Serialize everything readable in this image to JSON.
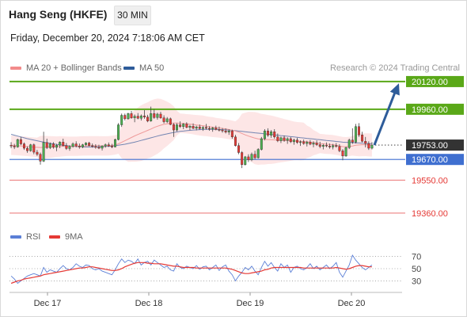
{
  "header": {
    "title": "Hang Seng (HKFE)",
    "interval": "30 MIN",
    "datetime": "Friday, December 20, 2024 7:18:06 AM CET"
  },
  "legend": {
    "ma20_label": "MA 20 + Bollinger Bands",
    "ma50_label": "MA 50",
    "credit": "Research © 2024 Trading Central",
    "rsi_label": "RSI",
    "ma9_label": "9MA"
  },
  "colors": {
    "up_candle": "#4caf50",
    "down_candle": "#e53935",
    "ma20": "#ef9a9a",
    "bollinger_fill": "#fde2e2",
    "ma50": "#5b73a8",
    "resistance": "#5aa818",
    "support_blue": "#3f6fd0",
    "support_red": "#ef8e8e",
    "current_price_bg": "#333333",
    "arrow": "#2e5c9a",
    "rsi_line": "#5b7fd6",
    "rsi_ma9": "#e53935"
  },
  "chart_data": [
    {
      "type": "candlestick",
      "ylim": [
        19300,
        20170
      ],
      "x_labels": [
        "Dec 17",
        "Dec 18",
        "Dec 19",
        "Dec 20"
      ],
      "levels": [
        {
          "value": 20120.0,
          "label": "20120.00",
          "kind": "resistance"
        },
        {
          "value": 19960.0,
          "label": "19960.00",
          "kind": "resistance"
        },
        {
          "value": 19753.0,
          "label": "19753.00",
          "kind": "current"
        },
        {
          "value": 19670.0,
          "label": "19670.00",
          "kind": "pivot"
        },
        {
          "value": 19550.0,
          "label": "19550.00",
          "kind": "support"
        },
        {
          "value": 19360.0,
          "label": "19360.00",
          "kind": "support"
        }
      ],
      "arrow": {
        "from": 19753,
        "to": 20110
      },
      "candles": [
        [
          19752,
          19770,
          19735,
          19748
        ],
        [
          19748,
          19760,
          19730,
          19742
        ],
        [
          19742,
          19790,
          19738,
          19785
        ],
        [
          19785,
          19800,
          19752,
          19760
        ],
        [
          19760,
          19768,
          19725,
          19735
        ],
        [
          19735,
          19745,
          19708,
          19720
        ],
        [
          19720,
          19760,
          19715,
          19755
        ],
        [
          19755,
          19762,
          19700,
          19712
        ],
        [
          19712,
          19725,
          19690,
          19700
        ],
        [
          19700,
          19710,
          19640,
          19660
        ],
        [
          19660,
          19830,
          19655,
          19768
        ],
        [
          19768,
          19790,
          19730,
          19738
        ],
        [
          19738,
          19768,
          19730,
          19760
        ],
        [
          19760,
          19770,
          19732,
          19740
        ],
        [
          19740,
          19760,
          19718,
          19752
        ],
        [
          19752,
          19775,
          19735,
          19770
        ],
        [
          19770,
          19790,
          19745,
          19750
        ],
        [
          19750,
          19765,
          19725,
          19733
        ],
        [
          19733,
          19752,
          19720,
          19745
        ],
        [
          19745,
          19768,
          19738,
          19760
        ],
        [
          19760,
          19775,
          19740,
          19748
        ],
        [
          19748,
          19762,
          19732,
          19742
        ],
        [
          19742,
          19760,
          19735,
          19755
        ],
        [
          19755,
          19770,
          19748,
          19765
        ],
        [
          19765,
          19772,
          19745,
          19750
        ],
        [
          19750,
          19762,
          19738,
          19745
        ],
        [
          19745,
          19758,
          19732,
          19740
        ],
        [
          19740,
          19755,
          19730,
          19735
        ],
        [
          19735,
          19752,
          19722,
          19748
        ],
        [
          19748,
          19762,
          19738,
          19755
        ],
        [
          19755,
          19768,
          19742,
          19748
        ],
        [
          19748,
          19760,
          19735,
          19742
        ],
        [
          19742,
          19790,
          19740,
          19785
        ],
        [
          19785,
          19880,
          19780,
          19870
        ],
        [
          19870,
          19935,
          19858,
          19925
        ],
        [
          19925,
          19935,
          19895,
          19905
        ],
        [
          19905,
          19940,
          19900,
          19935
        ],
        [
          19935,
          19950,
          19905,
          19910
        ],
        [
          19910,
          19930,
          19885,
          19920
        ],
        [
          19920,
          19938,
          19902,
          19908
        ],
        [
          19908,
          19930,
          19895,
          19922
        ],
        [
          19922,
          19955,
          19905,
          19915
        ],
        [
          19915,
          19928,
          19885,
          19892
        ],
        [
          19892,
          19975,
          19888,
          19935
        ],
        [
          19935,
          19960,
          19905,
          19912
        ],
        [
          19912,
          19940,
          19900,
          19932
        ],
        [
          19932,
          19945,
          19905,
          19910
        ],
        [
          19910,
          19925,
          19878,
          19888
        ],
        [
          19888,
          19915,
          19880,
          19905
        ],
        [
          19905,
          19912,
          19868,
          19872
        ],
        [
          19872,
          19880,
          19800,
          19840
        ],
        [
          19840,
          19880,
          19832,
          19870
        ],
        [
          19870,
          19890,
          19852,
          19860
        ],
        [
          19860,
          19880,
          19845,
          19875
        ],
        [
          19875,
          19885,
          19850,
          19855
        ],
        [
          19855,
          19870,
          19840,
          19862
        ],
        [
          19862,
          19878,
          19845,
          19850
        ],
        [
          19850,
          19865,
          19838,
          19858
        ],
        [
          19858,
          19872,
          19842,
          19848
        ],
        [
          19848,
          19862,
          19835,
          19855
        ],
        [
          19855,
          19875,
          19842,
          19850
        ],
        [
          19850,
          19862,
          19836,
          19845
        ],
        [
          19845,
          19858,
          19830,
          19852
        ],
        [
          19852,
          19865,
          19838,
          19843
        ],
        [
          19843,
          19860,
          19832,
          19840
        ],
        [
          19840,
          19852,
          19825,
          19835
        ],
        [
          19835,
          19850,
          19820,
          19828
        ],
        [
          19828,
          19845,
          19812,
          19835
        ],
        [
          19835,
          19842,
          19790,
          19800
        ],
        [
          19800,
          19812,
          19745,
          19750
        ],
        [
          19750,
          19765,
          19700,
          19710
        ],
        [
          19710,
          19718,
          19620,
          19640
        ],
        [
          19640,
          19690,
          19635,
          19685
        ],
        [
          19685,
          19700,
          19655,
          19668
        ],
        [
          19668,
          19710,
          19660,
          19700
        ],
        [
          19700,
          19720,
          19670,
          19680
        ],
        [
          19680,
          19735,
          19675,
          19728
        ],
        [
          19728,
          19800,
          19722,
          19790
        ],
        [
          19790,
          19845,
          19780,
          19835
        ],
        [
          19835,
          19850,
          19800,
          19810
        ],
        [
          19810,
          19840,
          19795,
          19830
        ],
        [
          19830,
          19845,
          19790,
          19800
        ],
        [
          19800,
          19820,
          19770,
          19778
        ],
        [
          19778,
          19802,
          19765,
          19795
        ],
        [
          19795,
          19808,
          19772,
          19780
        ],
        [
          19780,
          19798,
          19760,
          19790
        ],
        [
          19790,
          19800,
          19765,
          19772
        ],
        [
          19772,
          19790,
          19755,
          19782
        ],
        [
          19782,
          19795,
          19760,
          19768
        ],
        [
          19768,
          19780,
          19748,
          19772
        ],
        [
          19772,
          19785,
          19755,
          19762
        ],
        [
          19762,
          19778,
          19745,
          19770
        ],
        [
          19770,
          19782,
          19752,
          19758
        ],
        [
          19758,
          19775,
          19740,
          19765
        ],
        [
          19765,
          19780,
          19748,
          19755
        ],
        [
          19755,
          19772,
          19735,
          19745
        ],
        [
          19745,
          19760,
          19728,
          19752
        ],
        [
          19752,
          19768,
          19740,
          19748
        ],
        [
          19748,
          19762,
          19732,
          19742
        ],
        [
          19742,
          19760,
          19728,
          19750
        ],
        [
          19750,
          19765,
          19738,
          19745
        ],
        [
          19745,
          19758,
          19712,
          19720
        ],
        [
          19720,
          19730,
          19665,
          19690
        ],
        [
          19690,
          19745,
          19685,
          19738
        ],
        [
          19738,
          19790,
          19730,
          19782
        ],
        [
          19782,
          19850,
          19760,
          19770
        ],
        [
          19770,
          19875,
          19762,
          19860
        ],
        [
          19860,
          19880,
          19800,
          19812
        ],
        [
          19812,
          19830,
          19768,
          19775
        ],
        [
          19775,
          19800,
          19740,
          19762
        ],
        [
          19762,
          19775,
          19725,
          19735
        ],
        [
          19735,
          19770,
          19728,
          19753
        ]
      ],
      "ma20": [
        19752,
        19751,
        19750,
        19748,
        19747,
        19745,
        19743,
        19741,
        19740,
        19739,
        19740,
        19741,
        19742,
        19743,
        19744,
        19745,
        19746,
        19746,
        19746,
        19746,
        19746,
        19747,
        19748,
        19748,
        19749,
        19749,
        19749,
        19749,
        19748,
        19748,
        19749,
        19751,
        19754,
        19760,
        19769,
        19778,
        19787,
        19797,
        19806,
        19814,
        19822,
        19830,
        19838,
        19846,
        19855,
        19862,
        19868,
        19873,
        19876,
        19879,
        19880,
        19880,
        19879,
        19878,
        19876,
        19874,
        19872,
        19869,
        19867,
        19865,
        19862,
        19859,
        19857,
        19854,
        19852,
        19849,
        19846,
        19843,
        19839,
        19834,
        19828,
        19820,
        19812,
        19805,
        19799,
        19793,
        19789,
        19787,
        19786,
        19785,
        19784,
        19783,
        19782,
        19781,
        19780,
        19779,
        19778,
        19777,
        19776,
        19775,
        19774,
        19772,
        19770,
        19767,
        19765,
        19762,
        19760,
        19758,
        19757,
        19755,
        19752,
        19748,
        19744,
        19743,
        19745,
        19748,
        19752,
        19754,
        19755,
        19755,
        19754,
        19753
      ],
      "ma50": [
        19815,
        19810,
        19805,
        19800,
        19795,
        19790,
        19786,
        19782,
        19778,
        19774,
        19770,
        19766,
        19763,
        19760,
        19757,
        19755,
        19752,
        19750,
        19748,
        19746,
        19745,
        19744,
        19743,
        19742,
        19742,
        19742,
        19742,
        19743,
        19744,
        19745,
        19746,
        19748,
        19750,
        19752,
        19755,
        19758,
        19762,
        19766,
        19770,
        19775,
        19780,
        19785,
        19790,
        19795,
        19800,
        19805,
        19810,
        19814,
        19818,
        19822,
        19826,
        19829,
        19832,
        19834,
        19836,
        19838,
        19840,
        19841,
        19842,
        19843,
        19844,
        19844,
        19844,
        19844,
        19843,
        19842,
        19841,
        19840,
        19838,
        19836,
        19834,
        19832,
        19830,
        19828,
        19826,
        19824,
        19822,
        19820,
        19818,
        19816,
        19814,
        19812,
        19810,
        19808,
        19806,
        19804,
        19802,
        19800,
        19798,
        19796,
        19794,
        19792,
        19790,
        19788,
        19786,
        19784,
        19782,
        19780,
        19778,
        19776,
        19774,
        19772,
        19770,
        19769,
        19768,
        19767,
        19766,
        19765,
        19764,
        19763,
        19762,
        19761
      ]
    },
    {
      "type": "line",
      "name": "RSI",
      "ylim": [
        15,
        85
      ],
      "y_ticks": [
        70,
        50,
        30
      ],
      "rsi": [
        38,
        33,
        26,
        30,
        34,
        38,
        40,
        42,
        40,
        38,
        52,
        44,
        48,
        46,
        44,
        50,
        55,
        50,
        48,
        52,
        58,
        54,
        52,
        56,
        55,
        50,
        48,
        50,
        46,
        44,
        42,
        40,
        48,
        58,
        66,
        60,
        64,
        62,
        58,
        66,
        56,
        60,
        62,
        56,
        64,
        60,
        56,
        52,
        54,
        48,
        46,
        58,
        52,
        50,
        54,
        52,
        50,
        55,
        49,
        53,
        54,
        48,
        52,
        56,
        47,
        53,
        56,
        46,
        40,
        30,
        38,
        44,
        52,
        48,
        54,
        46,
        40,
        52,
        62,
        54,
        60,
        52,
        46,
        58,
        52,
        56,
        44,
        52,
        54,
        50,
        48,
        52,
        58,
        50,
        54,
        48,
        52,
        56,
        50,
        54,
        60,
        44,
        36,
        46,
        56,
        72,
        64,
        58,
        52,
        48,
        52,
        56
      ],
      "ma9": [
        26,
        28,
        30,
        31,
        33,
        34,
        35,
        36,
        37,
        38,
        40,
        41,
        42,
        43,
        44,
        45,
        46,
        47,
        48,
        49,
        50,
        51,
        51,
        52,
        53,
        53,
        52,
        51,
        50,
        49,
        48,
        47,
        47,
        48,
        50,
        53,
        55,
        57,
        59,
        60,
        60,
        60,
        59,
        59,
        58,
        58,
        58,
        57,
        56,
        55,
        54,
        54,
        53,
        52,
        52,
        52,
        52,
        51,
        51,
        51,
        51,
        51,
        51,
        51,
        51,
        51,
        51,
        50,
        49,
        47,
        45,
        43,
        42,
        42,
        43,
        44,
        45,
        46,
        48,
        49,
        51,
        52,
        52,
        52,
        52,
        52,
        52,
        52,
        52,
        52,
        51,
        51,
        51,
        51,
        51,
        51,
        51,
        51,
        51,
        51,
        52,
        51,
        50,
        49,
        50,
        52,
        54,
        55,
        55,
        54,
        53,
        53
      ]
    }
  ]
}
